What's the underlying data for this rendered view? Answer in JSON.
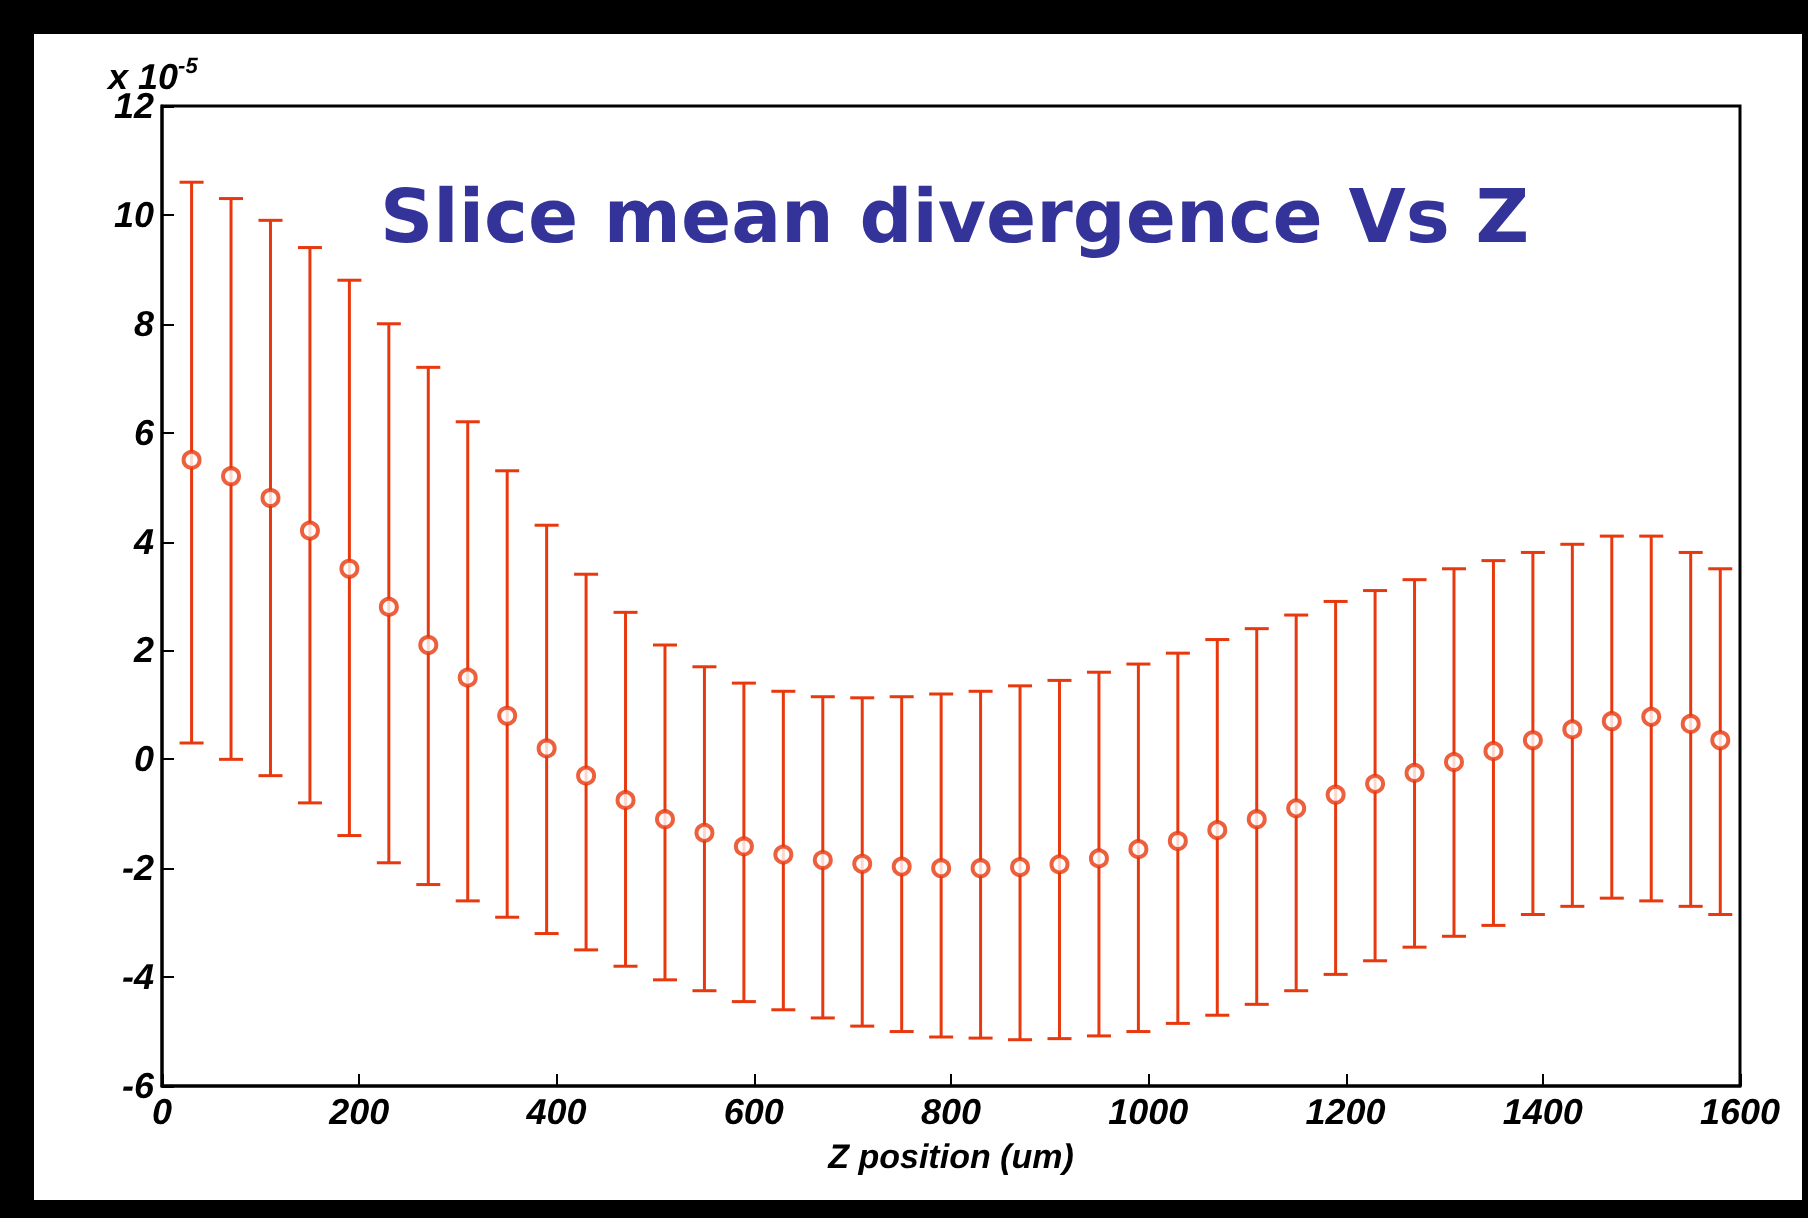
{
  "chart_data": {
    "type": "scatter",
    "title": "Slice mean divergence Vs Z",
    "xlabel": "Z position (um)",
    "annotations": [
      "x 10$^{-5}$"
    ],
    "marker": "circle",
    "grid": false,
    "xlim": [
      0,
      1600
    ],
    "xticks": [
      0,
      200,
      400,
      600,
      800,
      1000,
      1200,
      1400,
      1600
    ],
    "ylim": [
      -6,
      12
    ],
    "yticks": [
      -6,
      -4,
      -2,
      0,
      2,
      4,
      6,
      8,
      10,
      12
    ],
    "series": [
      {
        "color": "#e8380d",
        "x": [
          30,
          70,
          110,
          150,
          190,
          230,
          270,
          310,
          350,
          390,
          430,
          470,
          510,
          550,
          590,
          630,
          670,
          710,
          750,
          790,
          830,
          870,
          910,
          950,
          990,
          1030,
          1070,
          1110,
          1150,
          1190,
          1230,
          1270,
          1310,
          1350,
          1390,
          1430,
          1470,
          1510,
          1550,
          1580
        ],
        "values": [
          5.5,
          5.2,
          4.8,
          4.2,
          3.5,
          2.8,
          2.1,
          1.5,
          0.8,
          0.2,
          -0.3,
          -0.75,
          -1.1,
          -1.35,
          -1.6,
          -1.75,
          -1.85,
          -1.92,
          -1.97,
          -2.0,
          -2.0,
          -1.98,
          -1.93,
          -1.82,
          -1.65,
          -1.5,
          -1.3,
          -1.1,
          -0.9,
          -0.65,
          -0.45,
          -0.25,
          -0.05,
          0.15,
          0.35,
          0.55,
          0.7,
          0.78,
          0.65,
          0.35
        ],
        "errors": [
          [
            0.3,
            10.6
          ],
          [
            0.0,
            10.3
          ],
          [
            -0.3,
            9.9
          ],
          [
            -0.8,
            9.4
          ],
          [
            -1.4,
            8.8
          ],
          [
            -1.9,
            8.0
          ],
          [
            -2.3,
            7.2
          ],
          [
            -2.6,
            6.2
          ],
          [
            -2.9,
            5.3
          ],
          [
            -3.2,
            4.3
          ],
          [
            -3.5,
            3.4
          ],
          [
            -3.8,
            2.7
          ],
          [
            -4.05,
            2.1
          ],
          [
            -4.25,
            1.7
          ],
          [
            -4.45,
            1.4
          ],
          [
            -4.6,
            1.25
          ],
          [
            -4.75,
            1.15
          ],
          [
            -4.9,
            1.13
          ],
          [
            -5.0,
            1.15
          ],
          [
            -5.1,
            1.2
          ],
          [
            -5.12,
            1.25
          ],
          [
            -5.15,
            1.35
          ],
          [
            -5.13,
            1.45
          ],
          [
            -5.08,
            1.6
          ],
          [
            -5.0,
            1.75
          ],
          [
            -4.85,
            1.95
          ],
          [
            -4.7,
            2.2
          ],
          [
            -4.5,
            2.4
          ],
          [
            -4.25,
            2.65
          ],
          [
            -3.95,
            2.9
          ],
          [
            -3.7,
            3.1
          ],
          [
            -3.45,
            3.3
          ],
          [
            -3.25,
            3.5
          ],
          [
            -3.05,
            3.65
          ],
          [
            -2.85,
            3.8
          ],
          [
            -2.7,
            3.95
          ],
          [
            -2.55,
            4.1
          ],
          [
            -2.6,
            4.1
          ],
          [
            -2.7,
            3.8
          ],
          [
            -2.85,
            3.5
          ]
        ]
      }
    ]
  }
}
